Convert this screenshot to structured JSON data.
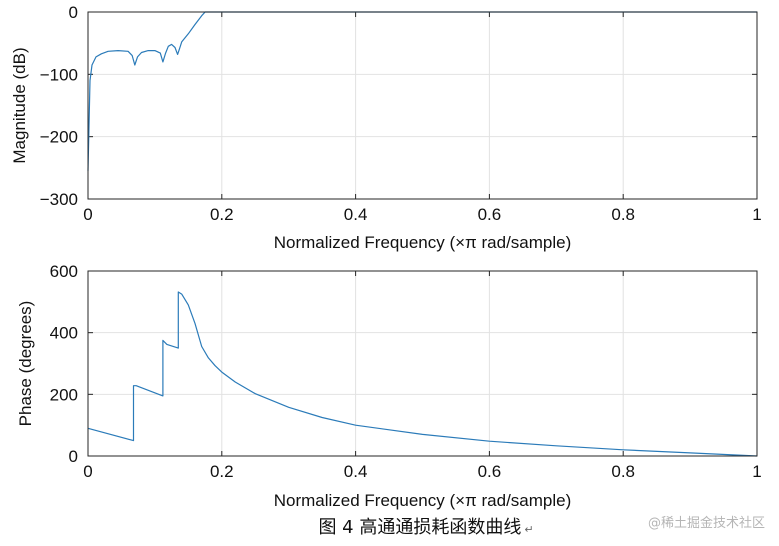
{
  "chart_data": [
    {
      "type": "line",
      "xlabel": "Normalized Frequency  (×π rad/sample)",
      "ylabel": "Magnitude (dB)",
      "xlim": [
        0,
        1
      ],
      "ylim": [
        -300,
        0
      ],
      "xticks": [
        0,
        0.2,
        0.4,
        0.6,
        0.8,
        1
      ],
      "xtick_labels": [
        "0",
        "0.2",
        "0.4",
        "0.6",
        "0.8",
        "1"
      ],
      "yticks": [
        0,
        -100,
        -200,
        -300
      ],
      "ytick_labels": [
        "0",
        "−100",
        "−200",
        "−300"
      ],
      "grid": true,
      "color": "#2b7bb9",
      "series": [
        {
          "x": [
            0,
            0.003,
            0.006,
            0.012,
            0.02,
            0.03,
            0.045,
            0.06,
            0.066,
            0.07,
            0.074,
            0.08,
            0.09,
            0.1,
            0.108,
            0.112,
            0.116,
            0.12,
            0.125,
            0.13,
            0.134,
            0.137,
            0.14,
            0.15,
            0.16,
            0.17,
            0.175,
            1.0
          ],
          "y": [
            -255,
            -110,
            -85,
            -72,
            -67,
            -63,
            -62,
            -63,
            -70,
            -85,
            -72,
            -65,
            -62,
            -62,
            -66,
            -80,
            -66,
            -55,
            -52,
            -57,
            -68,
            -58,
            -48,
            -35,
            -20,
            -6,
            0,
            0
          ]
        }
      ]
    },
    {
      "type": "line",
      "xlabel": "Normalized Frequency  (×π rad/sample)",
      "ylabel": "Phase (degrees)",
      "xlim": [
        0,
        1
      ],
      "ylim": [
        0,
        600
      ],
      "xticks": [
        0,
        0.2,
        0.4,
        0.6,
        0.8,
        1
      ],
      "xtick_labels": [
        "0",
        "0.2",
        "0.4",
        "0.6",
        "0.8",
        "1"
      ],
      "yticks": [
        0,
        200,
        400,
        600
      ],
      "ytick_labels": [
        "0",
        "200",
        "400",
        "600"
      ],
      "grid": true,
      "color": "#2b7bb9",
      "series": [
        {
          "x": [
            0,
            0.068,
            0.068,
            0.072,
            0.112,
            0.112,
            0.118,
            0.135,
            0.135,
            0.14,
            0.15,
            0.16,
            0.17,
            0.18,
            0.19,
            0.2,
            0.22,
            0.25,
            0.3,
            0.35,
            0.4,
            0.5,
            0.6,
            0.7,
            0.8,
            0.9,
            1.0
          ],
          "y": [
            90,
            50,
            228,
            228,
            195,
            375,
            362,
            350,
            532,
            525,
            490,
            430,
            355,
            318,
            293,
            272,
            240,
            202,
            158,
            125,
            100,
            70,
            48,
            33,
            20,
            10,
            0
          ]
        }
      ]
    }
  ],
  "caption": "图 4  高通通损耗函数曲线",
  "caption_mark": "↵",
  "watermark": "@稀土掘金技术社区"
}
